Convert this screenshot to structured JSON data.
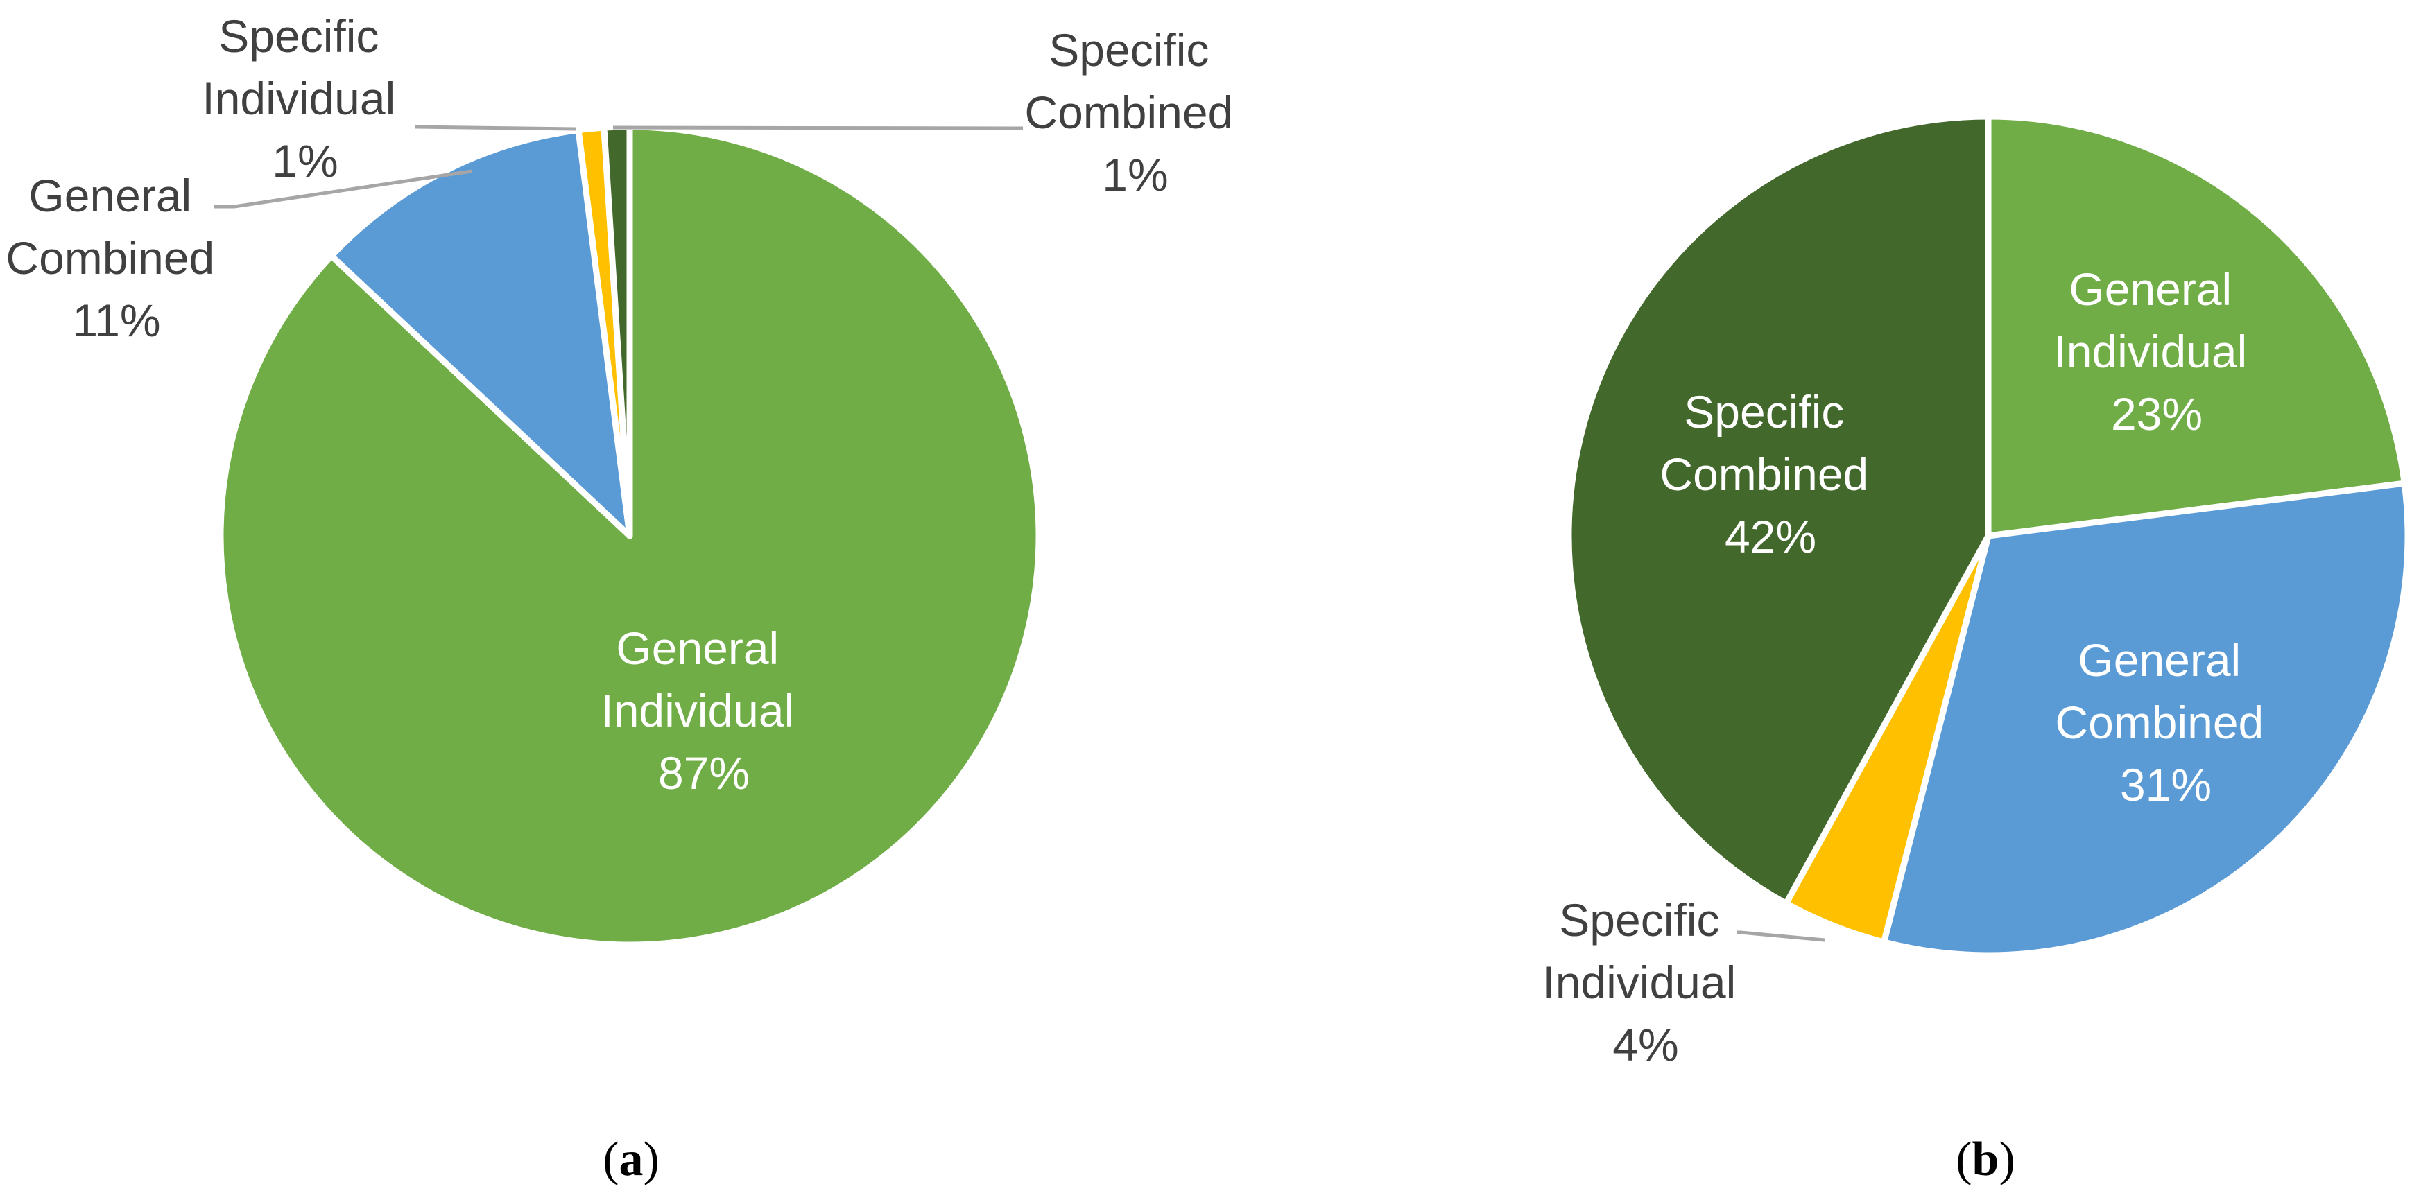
{
  "chart_data": [
    {
      "id": "a",
      "type": "pie",
      "caption_letter": "a",
      "start_angle_deg": 0,
      "direction": "clockwise",
      "slices": [
        {
          "name": "General Individual",
          "line1": "General",
          "line2": "Individual",
          "pct_label": "87%",
          "value": 87,
          "color": "#70AD47",
          "label_style": "inside-light"
        },
        {
          "name": "General Combined",
          "line1": "General",
          "line2": "Combined",
          "pct_label": "11%",
          "value": 11,
          "color": "#5B9BD5",
          "label_style": "outside-dark"
        },
        {
          "name": "Specific Individual",
          "line1": "Specific",
          "line2": "Individual",
          "pct_label": "1%",
          "value": 1,
          "color": "#FFC000",
          "label_style": "outside-dark"
        },
        {
          "name": "Specific Combined",
          "line1": "Specific",
          "line2": "Combined",
          "pct_label": "1%",
          "value": 1,
          "color": "#43682B",
          "label_style": "outside-dark"
        }
      ]
    },
    {
      "id": "b",
      "type": "pie",
      "caption_letter": "b",
      "start_angle_deg": 0,
      "direction": "clockwise",
      "slices": [
        {
          "name": "General Individual",
          "line1": "General",
          "line2": "Individual",
          "pct_label": "23%",
          "value": 23,
          "color": "#70AD47",
          "label_style": "inside-light"
        },
        {
          "name": "General Combined",
          "line1": "General",
          "line2": "Combined",
          "pct_label": "31%",
          "value": 31,
          "color": "#5B9BD5",
          "label_style": "inside-light"
        },
        {
          "name": "Specific Individual",
          "line1": "Specific",
          "line2": "Individual",
          "pct_label": "4%",
          "value": 4,
          "color": "#FFC000",
          "label_style": "outside-dark"
        },
        {
          "name": "Specific Combined",
          "line1": "Specific",
          "line2": "Combined",
          "pct_label": "42%",
          "value": 42,
          "color": "#43682B",
          "label_style": "inside-light"
        }
      ]
    }
  ]
}
